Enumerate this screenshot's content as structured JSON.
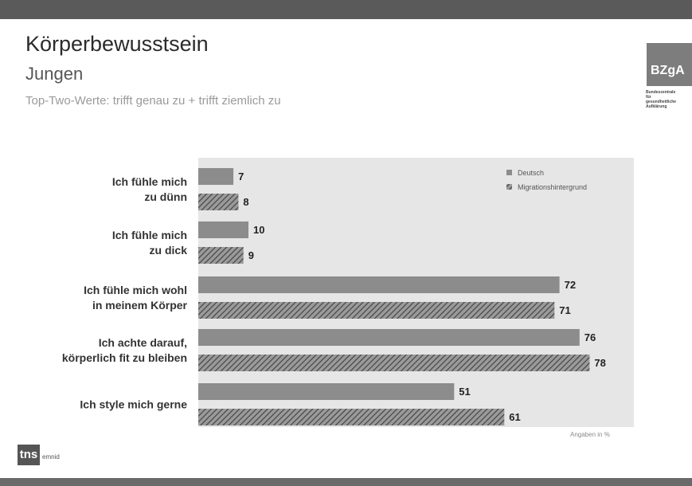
{
  "slide": {
    "title": "Körperbewusstsein",
    "subtitle": "Jungen",
    "description": "Top-Two-Werte: trifft genau zu + trifft ziemlich zu",
    "note": "Angaben in %"
  },
  "logos": {
    "brand": "BZgA",
    "brand_sub": [
      "Bundeszentrale",
      "für",
      "gesundheitliche",
      "Aufklärung"
    ],
    "footer": "tns",
    "footer_sub": "emnid"
  },
  "chart_data": {
    "type": "bar",
    "orientation": "horizontal",
    "categories": [
      [
        "Ich fühle mich",
        "zu dünn"
      ],
      [
        "Ich fühle mich",
        "zu dick"
      ],
      [
        "Ich fühle mich wohl",
        "in meinem Körper"
      ],
      [
        "Ich achte darauf,",
        "körperlich fit zu bleiben"
      ],
      [
        "Ich style mich gerne"
      ]
    ],
    "series": [
      {
        "name": "Deutsch",
        "values": [
          7,
          10,
          72,
          76,
          51
        ],
        "color": "#8c8c8c",
        "pattern": "solid"
      },
      {
        "name": "Migrationshintergrund",
        "values": [
          8,
          9,
          71,
          78,
          61
        ],
        "color": "#5e5e5e",
        "pattern": "hatched"
      }
    ],
    "xlim": [
      0,
      100
    ],
    "legend_position": "top-right",
    "grid": false
  },
  "colors": {
    "plot_background": "#e6e6e6",
    "band": "#5a5a5a"
  }
}
